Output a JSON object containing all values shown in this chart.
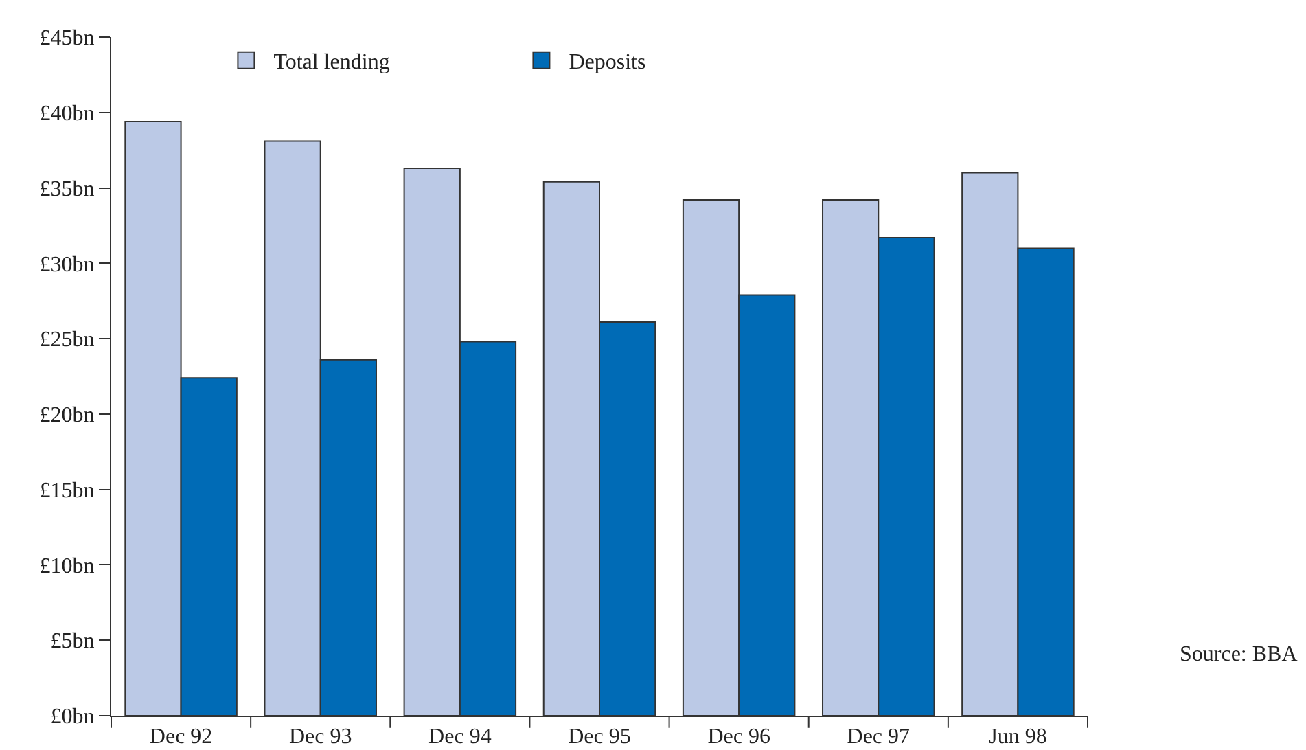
{
  "chart_data": {
    "type": "bar",
    "categories": [
      "Dec 92",
      "Dec 93",
      "Dec 94",
      "Dec 95",
      "Dec 96",
      "Dec 97",
      "Jun 98"
    ],
    "series": [
      {
        "name": "Total lending",
        "color": "#bbc9e6",
        "values": [
          39.4,
          38.1,
          36.3,
          35.4,
          34.2,
          34.2,
          36.0
        ]
      },
      {
        "name": "Deposits",
        "color": "#006bb6",
        "values": [
          22.4,
          23.6,
          24.8,
          26.1,
          27.9,
          31.7,
          31.0
        ]
      }
    ],
    "ylim": [
      0,
      45
    ],
    "yticks": [
      {
        "value": 0,
        "label": "£0bn"
      },
      {
        "value": 5,
        "label": "£5bn"
      },
      {
        "value": 10,
        "label": "£10bn"
      },
      {
        "value": 15,
        "label": "£15bn"
      },
      {
        "value": 20,
        "label": "£20bn"
      },
      {
        "value": 25,
        "label": "£25bn"
      },
      {
        "value": 30,
        "label": "£30bn"
      },
      {
        "value": 35,
        "label": "£35bn"
      },
      {
        "value": 40,
        "label": "£40bn"
      },
      {
        "value": 45,
        "label": "£45bn"
      }
    ],
    "legend": "top",
    "annotations": [
      "Source: BBA"
    ]
  }
}
